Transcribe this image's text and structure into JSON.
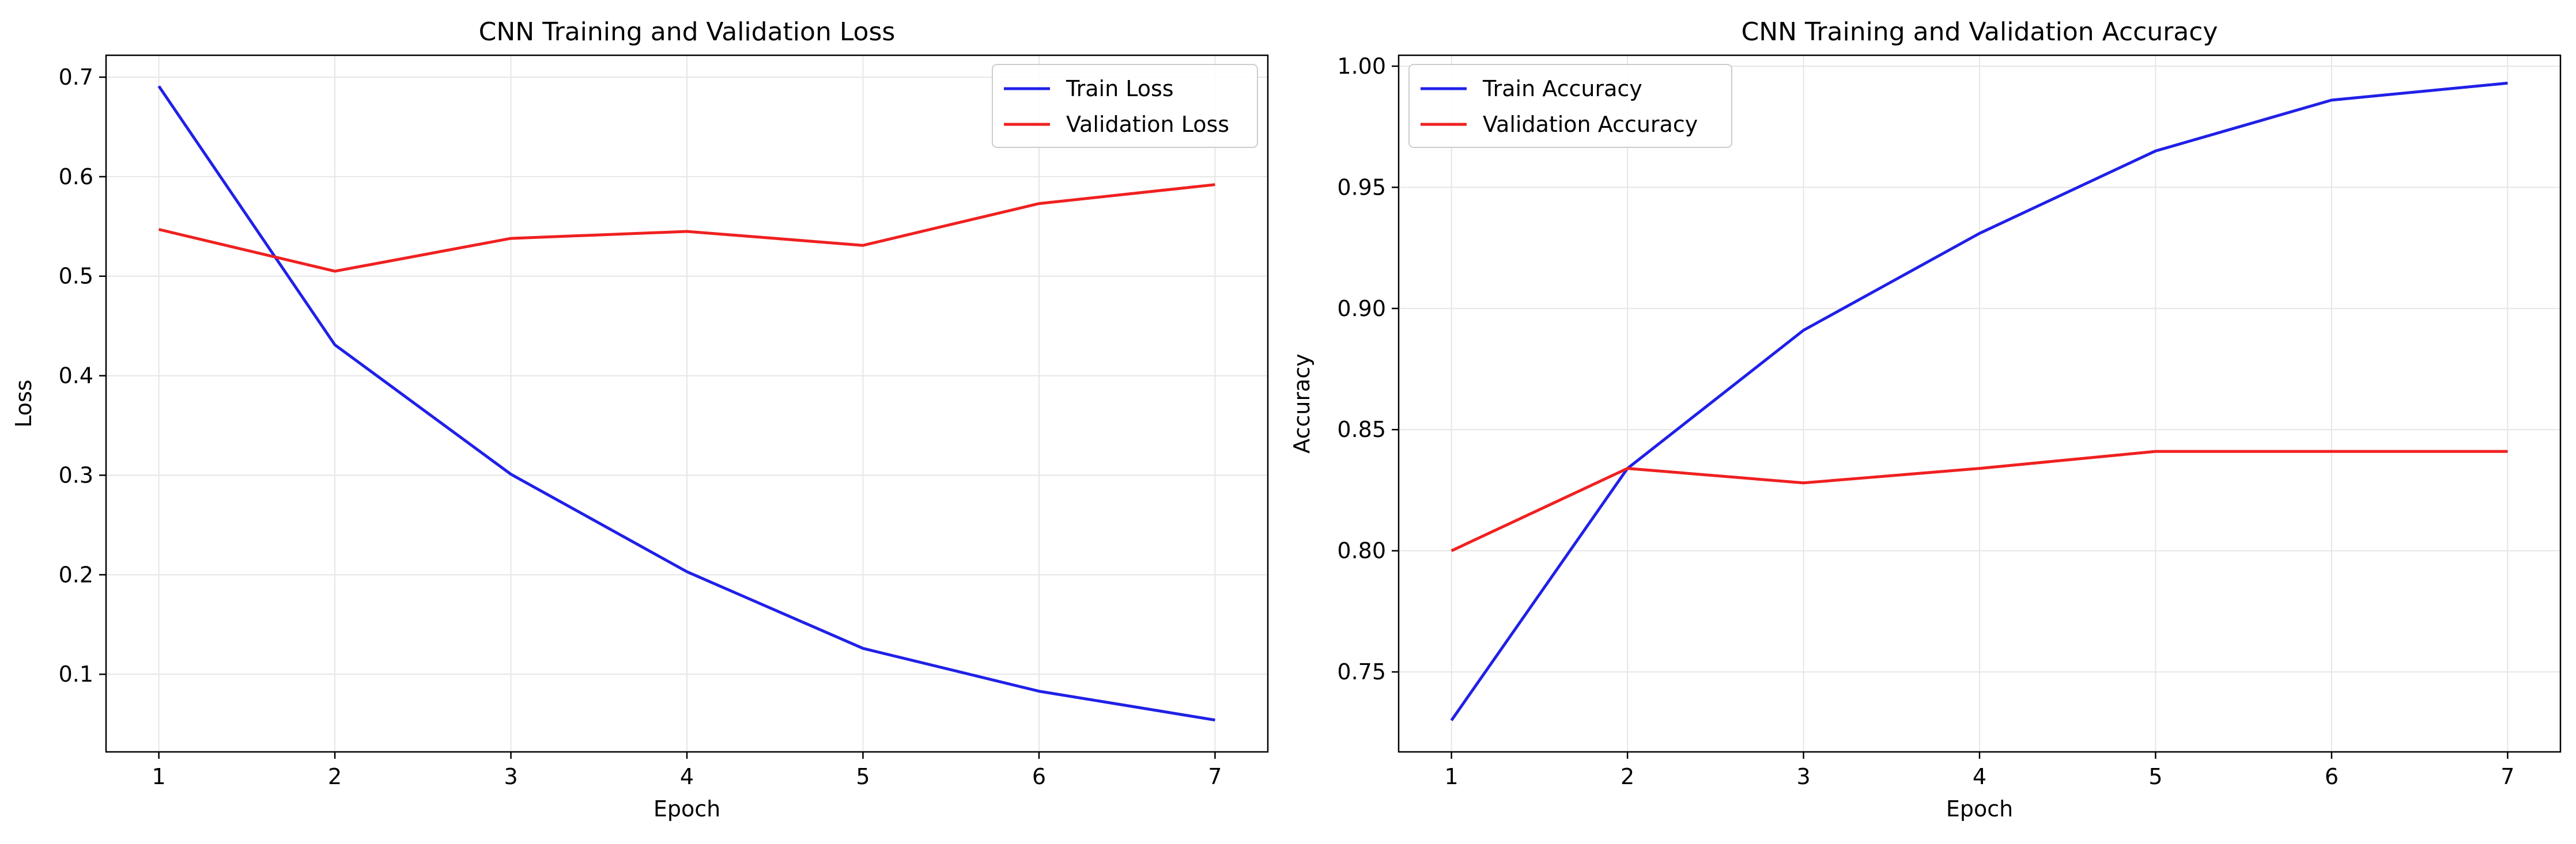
{
  "chart_data": [
    {
      "type": "line",
      "title": "CNN Training and Validation Loss",
      "xlabel": "Epoch",
      "ylabel": "Loss",
      "x": [
        1,
        2,
        3,
        4,
        5,
        6,
        7
      ],
      "xticks": [
        "1",
        "2",
        "3",
        "4",
        "5",
        "6",
        "7"
      ],
      "yticks": [
        "0.1",
        "0.2",
        "0.3",
        "0.4",
        "0.5",
        "0.6",
        "0.7"
      ],
      "xlim": [
        0.7,
        7.3
      ],
      "ylim": [
        0.022,
        0.722
      ],
      "grid": true,
      "legend_position": "top-right",
      "series": [
        {
          "name": "Train Loss",
          "color": "#2020e8",
          "values": [
            0.691,
            0.431,
            0.301,
            0.203,
            0.126,
            0.083,
            0.054
          ]
        },
        {
          "name": "Validation Loss",
          "color": "#f02020",
          "values": [
            0.547,
            0.505,
            0.538,
            0.545,
            0.531,
            0.573,
            0.592
          ]
        }
      ]
    },
    {
      "type": "line",
      "title": "CNN Training and Validation Accuracy",
      "xlabel": "Epoch",
      "ylabel": "Accuracy",
      "x": [
        1,
        2,
        3,
        4,
        5,
        6,
        7
      ],
      "xticks": [
        "1",
        "2",
        "3",
        "4",
        "5",
        "6",
        "7"
      ],
      "yticks": [
        "0.75",
        "0.80",
        "0.85",
        "0.90",
        "0.95",
        "1.00"
      ],
      "xlim": [
        0.7,
        7.3
      ],
      "ylim": [
        0.717,
        1.0045
      ],
      "grid": true,
      "legend_position": "top-left",
      "series": [
        {
          "name": "Train Accuracy",
          "color": "#2020e8",
          "values": [
            0.73,
            0.834,
            0.891,
            0.931,
            0.965,
            0.986,
            0.993
          ]
        },
        {
          "name": "Validation Accuracy",
          "color": "#f02020",
          "values": [
            0.8,
            0.834,
            0.828,
            0.834,
            0.841,
            0.841,
            0.841
          ]
        }
      ]
    }
  ]
}
